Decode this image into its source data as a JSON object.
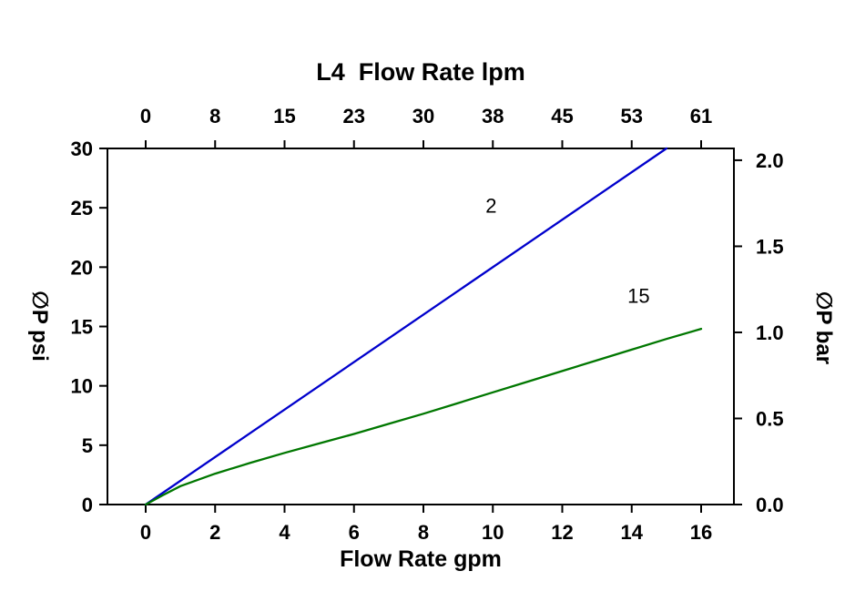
{
  "chart_data": {
    "type": "line",
    "title": "L4  Flow Rate lpm",
    "top_axis": {
      "title": "L4  Flow Rate lpm",
      "unit": "lpm",
      "ticks": [
        "0",
        "8",
        "15",
        "23",
        "30",
        "38",
        "45",
        "53",
        "61"
      ]
    },
    "bottom_axis": {
      "title": "Flow Rate gpm",
      "unit": "gpm",
      "ticks": [
        0,
        2,
        4,
        6,
        8,
        10,
        12,
        14,
        16
      ],
      "range": [
        0,
        16
      ]
    },
    "left_axis": {
      "title": "∅P psi",
      "unit": "psi",
      "ticks": [
        0,
        5,
        10,
        15,
        20,
        25,
        30
      ],
      "range": [
        0,
        30
      ]
    },
    "right_axis": {
      "title": "∅P bar",
      "unit": "bar",
      "ticks": [
        "0.0",
        "0.5",
        "1.0",
        "1.5",
        "2.0"
      ],
      "psi_per_bar": 14.5038,
      "range": [
        0,
        2.07
      ]
    },
    "grid": false,
    "legend": "inline-labels",
    "series": [
      {
        "name": "2",
        "color": "#0000cc",
        "label_pos": {
          "x": 9.95,
          "y": 24.6
        },
        "points": [
          [
            0,
            0
          ],
          [
            15,
            30
          ]
        ]
      },
      {
        "name": "15",
        "color": "#007700",
        "label_pos": {
          "x": 14.2,
          "y": 17.0
        },
        "points": [
          [
            0,
            0
          ],
          [
            0.5,
            0.8
          ],
          [
            1,
            1.55
          ],
          [
            2,
            2.6
          ],
          [
            3,
            3.5
          ],
          [
            4,
            4.35
          ],
          [
            5,
            5.15
          ],
          [
            6,
            5.95
          ],
          [
            7,
            6.8
          ],
          [
            8,
            7.65
          ],
          [
            9,
            8.55
          ],
          [
            10,
            9.45
          ],
          [
            11,
            10.35
          ],
          [
            12,
            11.25
          ],
          [
            13,
            12.15
          ],
          [
            14,
            13.05
          ],
          [
            15,
            13.95
          ],
          [
            16,
            14.8
          ]
        ]
      }
    ]
  }
}
